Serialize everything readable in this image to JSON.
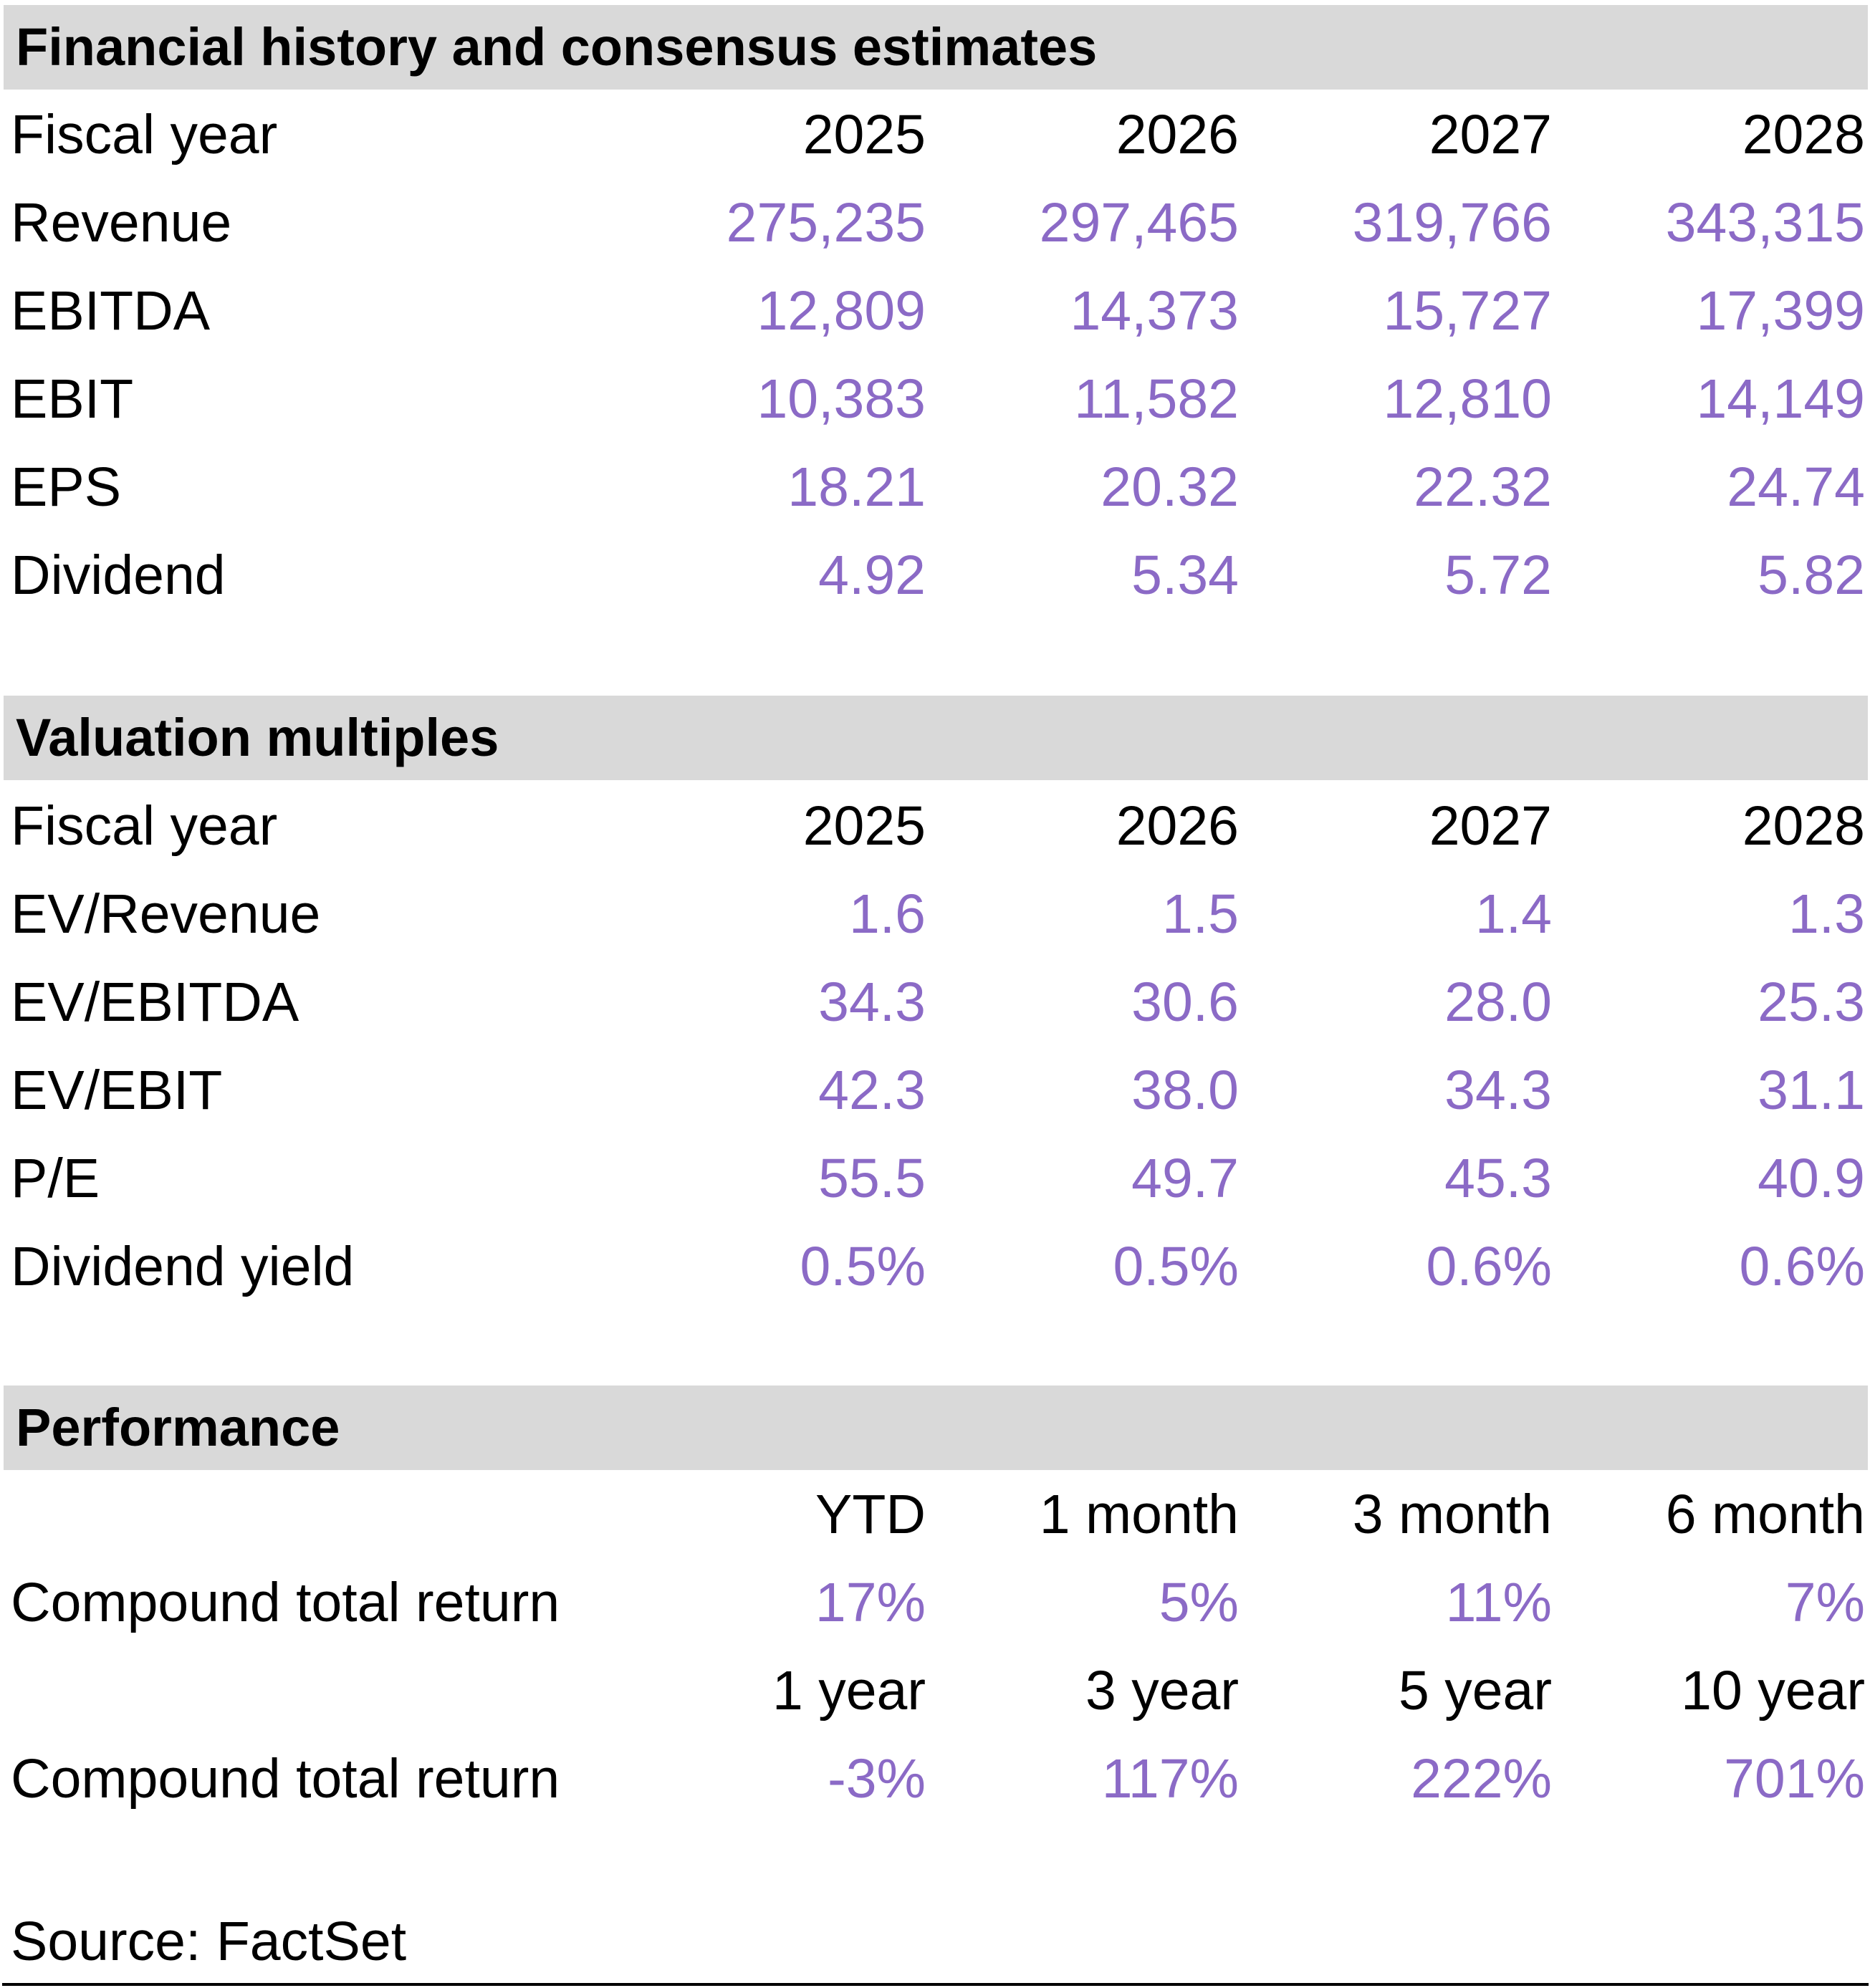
{
  "colors": {
    "accent_purple": "#8b6ac6",
    "section_header_bg": "#d9d9d9",
    "text": "#000000"
  },
  "sections": [
    {
      "title": "Financial history and consensus estimates",
      "header": {
        "label": "Fiscal year",
        "cols": [
          "2025",
          "2026",
          "2027",
          "2028"
        ]
      },
      "rows": [
        {
          "label": "Revenue",
          "values": [
            "275,235",
            "297,465",
            "319,766",
            "343,315"
          ]
        },
        {
          "label": "EBITDA",
          "values": [
            "12,809",
            "14,373",
            "15,727",
            "17,399"
          ]
        },
        {
          "label": "EBIT",
          "values": [
            "10,383",
            "11,582",
            "12,810",
            "14,149"
          ]
        },
        {
          "label": "EPS",
          "values": [
            "18.21",
            "20.32",
            "22.32",
            "24.74"
          ]
        },
        {
          "label": "Dividend",
          "values": [
            "4.92",
            "5.34",
            "5.72",
            "5.82"
          ]
        }
      ]
    },
    {
      "title": "Valuation multiples",
      "header": {
        "label": "Fiscal year",
        "cols": [
          "2025",
          "2026",
          "2027",
          "2028"
        ]
      },
      "rows": [
        {
          "label": "EV/Revenue",
          "values": [
            "1.6",
            "1.5",
            "1.4",
            "1.3"
          ]
        },
        {
          "label": "EV/EBITDA",
          "values": [
            "34.3",
            "30.6",
            "28.0",
            "25.3"
          ]
        },
        {
          "label": "EV/EBIT",
          "values": [
            "42.3",
            "38.0",
            "34.3",
            "31.1"
          ]
        },
        {
          "label": "P/E",
          "values": [
            "55.5",
            "49.7",
            "45.3",
            "40.9"
          ]
        },
        {
          "label": "Dividend yield",
          "values": [
            "0.5%",
            "0.5%",
            "0.6%",
            "0.6%"
          ]
        }
      ]
    },
    {
      "title": "Performance",
      "blocks": [
        {
          "header_cols": [
            "YTD",
            "1 month",
            "3 month",
            "6 month"
          ],
          "row_label": "Compound total return",
          "row_values": [
            "17%",
            "5%",
            "11%",
            "7%"
          ]
        },
        {
          "header_cols": [
            "1 year",
            "3 year",
            "5 year",
            "10 year"
          ],
          "row_label": "Compound total return",
          "row_values": [
            "-3%",
            "117%",
            "222%",
            "701%"
          ]
        }
      ]
    }
  ],
  "source": "Source: FactSet"
}
